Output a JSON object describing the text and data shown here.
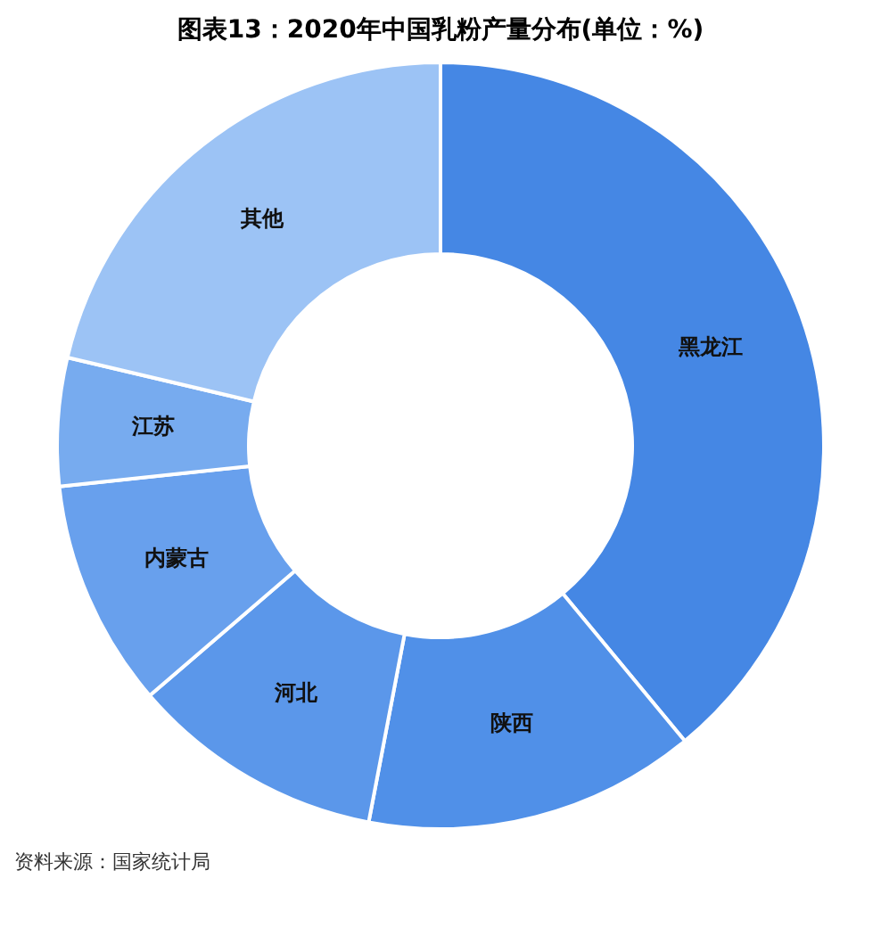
{
  "chart_data": {
    "type": "donut",
    "title": "图表13：2020年中国乳粉产量分布(单位：%)",
    "categories": [
      "黑龙江",
      "陕西",
      "河北",
      "内蒙古",
      "江苏",
      "其他"
    ],
    "values": [
      39,
      14,
      10.7,
      9.6,
      5.4,
      21.3
    ],
    "colors": [
      "#4587e4",
      "#5090e8",
      "#5b97ea",
      "#68a0ed",
      "#77abef",
      "#9cc3f5"
    ],
    "legend": false,
    "annotations": [
      "资料来源：国家统计局"
    ]
  }
}
